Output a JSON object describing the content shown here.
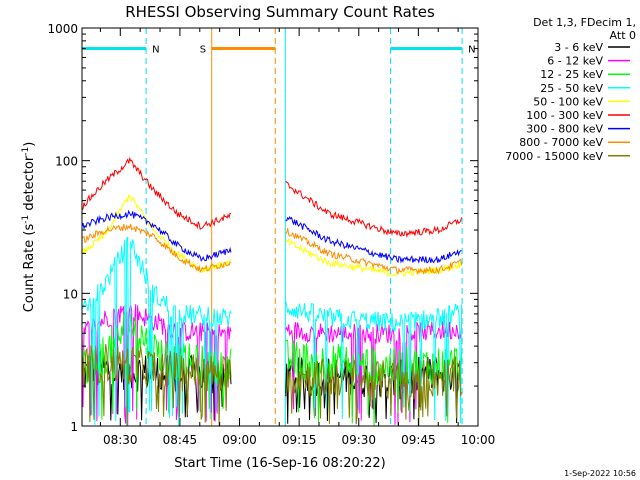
{
  "chart_data": {
    "type": "line",
    "title": "RHESSI Observing Summary Count Rates",
    "xlabel": "Start Time (16-Sep-16 08:20:22)",
    "ylabel_main": "Count Rate (s",
    "ylabel_sup1": "-1",
    "ylabel_mid": " detector",
    "ylabel_sup2": "-1",
    "ylabel_end": ")",
    "yscale": "log",
    "ylim": [
      1,
      1000
    ],
    "xlim": [
      "08:20:22",
      "10:00:00"
    ],
    "x_ticks": [
      "08:30",
      "08:45",
      "09:00",
      "09:15",
      "09:30",
      "09:45",
      "10:00"
    ],
    "y_ticks": [
      {
        "value": 1,
        "label": "1"
      },
      {
        "value": 10,
        "label": "10"
      },
      {
        "value": 100,
        "label": "100"
      },
      {
        "value": 1000,
        "label": "1000"
      }
    ],
    "legend_header": [
      "Det 1,3, FDecim 1,",
      "Att 0"
    ],
    "legend_placement": "right",
    "timestamp": "1-Sep-2022 10:56",
    "annotations": [
      {
        "label": "N",
        "color": "#00e5ee",
        "type": "night",
        "intervals": [
          [
            "08:20:22",
            "08:36:30"
          ],
          [
            "09:38:00",
            "09:56:00"
          ]
        ]
      },
      {
        "label": "S",
        "color": "#ff8c00",
        "type": "saa",
        "intervals": [
          [
            "08:53:00",
            "09:09:00"
          ]
        ]
      }
    ],
    "gap": [
      "08:58:00",
      "09:11:30"
    ],
    "series": [
      {
        "name": "3 - 6 keV",
        "color": "#000000",
        "profile": [
          [
            0,
            2.4
          ],
          [
            6,
            2.7
          ],
          [
            12,
            2.6
          ],
          [
            24,
            2.4
          ],
          [
            37,
            2.4
          ],
          [
            51,
            2.3
          ],
          [
            62,
            2.4
          ],
          [
            79,
            2.2
          ],
          [
            90,
            2.5
          ],
          [
            97,
            2.4
          ]
        ]
      },
      {
        "name": "6 - 12 keV",
        "color": "#ff00ff",
        "profile": [
          [
            0,
            5.0
          ],
          [
            6,
            6.5
          ],
          [
            12,
            7.5
          ],
          [
            18,
            6.2
          ],
          [
            24,
            5.2
          ],
          [
            37,
            5.0
          ],
          [
            51,
            5.3
          ],
          [
            62,
            5.0
          ],
          [
            79,
            5.0
          ],
          [
            90,
            5.2
          ],
          [
            97,
            5.5
          ]
        ]
      },
      {
        "name": "12 - 25 keV",
        "color": "#00ff00",
        "profile": [
          [
            0,
            2.8
          ],
          [
            6,
            3.5
          ],
          [
            12,
            6.0
          ],
          [
            18,
            3.8
          ],
          [
            24,
            3.0
          ],
          [
            37,
            2.8
          ],
          [
            51,
            3.2
          ],
          [
            62,
            3.0
          ],
          [
            79,
            2.8
          ],
          [
            90,
            2.9
          ],
          [
            97,
            3.0
          ]
        ]
      },
      {
        "name": "25 - 50 keV",
        "color": "#00ffff",
        "profile": [
          [
            0,
            7.0
          ],
          [
            6,
            12.0
          ],
          [
            12,
            25.0
          ],
          [
            18,
            10.0
          ],
          [
            24,
            7.0
          ],
          [
            37,
            6.5
          ],
          [
            51,
            8.0
          ],
          [
            62,
            6.5
          ],
          [
            79,
            6.0
          ],
          [
            90,
            6.5
          ],
          [
            97,
            7.5
          ]
        ]
      },
      {
        "name": "50 - 100 keV",
        "color": "#ffff00",
        "profile": [
          [
            0,
            20.0
          ],
          [
            6,
            28.0
          ],
          [
            12,
            55.0
          ],
          [
            18,
            30.0
          ],
          [
            24,
            20.0
          ],
          [
            30,
            15.0
          ],
          [
            37,
            17.0
          ],
          [
            51,
            25.0
          ],
          [
            62,
            17.0
          ],
          [
            79,
            14.0
          ],
          [
            90,
            15.0
          ],
          [
            97,
            17.0
          ]
        ]
      },
      {
        "name": "100 - 300 keV",
        "color": "#ff0000",
        "profile": [
          [
            0,
            45.0
          ],
          [
            6,
            70.0
          ],
          [
            12,
            100.0
          ],
          [
            18,
            60.0
          ],
          [
            24,
            40.0
          ],
          [
            30,
            32.0
          ],
          [
            37,
            38.0
          ],
          [
            51,
            68.0
          ],
          [
            62,
            40.0
          ],
          [
            79,
            28.0
          ],
          [
            90,
            30.0
          ],
          [
            97,
            38.0
          ]
        ]
      },
      {
        "name": "300 - 800 keV",
        "color": "#0000ff",
        "profile": [
          [
            0,
            32.0
          ],
          [
            6,
            37.0
          ],
          [
            12,
            40.0
          ],
          [
            18,
            33.0
          ],
          [
            24,
            23.0
          ],
          [
            30,
            18.0
          ],
          [
            37,
            21.0
          ],
          [
            51,
            38.0
          ],
          [
            62,
            25.0
          ],
          [
            79,
            18.0
          ],
          [
            90,
            18.0
          ],
          [
            97,
            22.0
          ]
        ]
      },
      {
        "name": "800 - 7000 keV",
        "color": "#ff8c00",
        "profile": [
          [
            0,
            25.0
          ],
          [
            6,
            30.0
          ],
          [
            12,
            32.0
          ],
          [
            18,
            27.0
          ],
          [
            24,
            19.0
          ],
          [
            30,
            15.0
          ],
          [
            37,
            17.0
          ],
          [
            51,
            30.0
          ],
          [
            62,
            20.0
          ],
          [
            79,
            15.0
          ],
          [
            90,
            15.0
          ],
          [
            97,
            18.0
          ]
        ]
      },
      {
        "name": "7000 - 15000 keV",
        "color": "#808000",
        "profile": [
          [
            0,
            2.8
          ],
          [
            6,
            3.0
          ],
          [
            12,
            2.9
          ],
          [
            24,
            2.6
          ],
          [
            37,
            2.4
          ],
          [
            51,
            2.4
          ],
          [
            62,
            2.3
          ],
          [
            79,
            2.2
          ],
          [
            90,
            2.3
          ],
          [
            97,
            2.4
          ]
        ]
      }
    ]
  }
}
